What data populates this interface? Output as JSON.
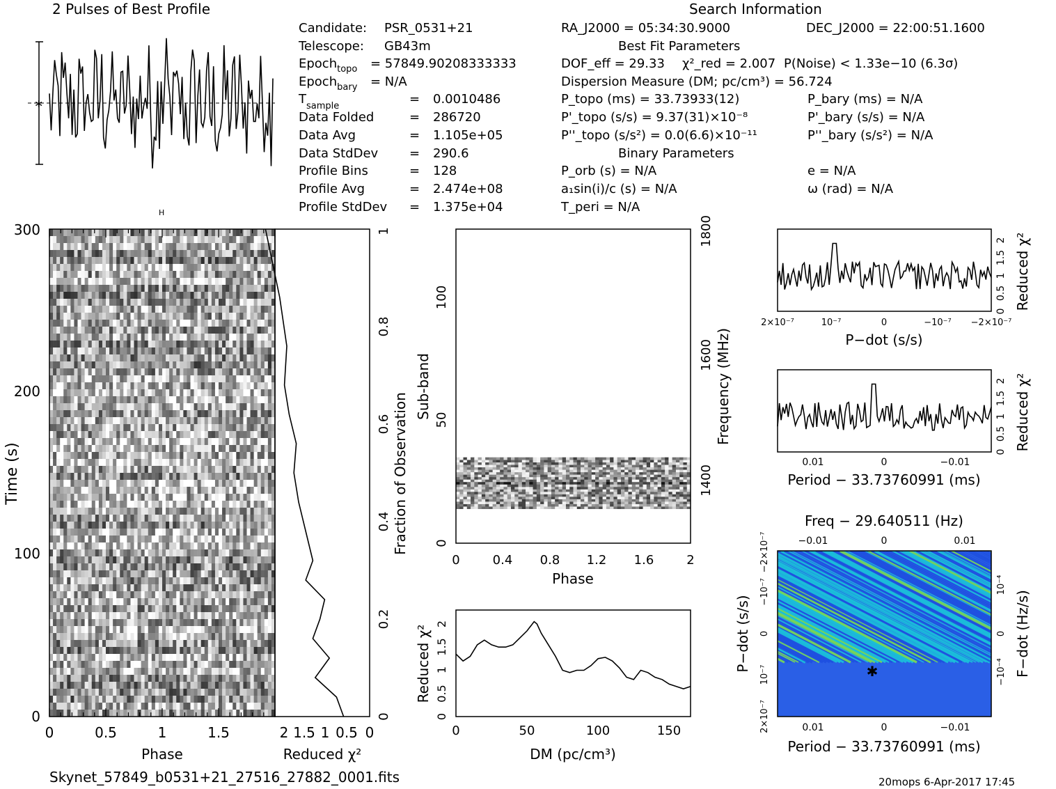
{
  "header": {
    "profile_title": "2 Pulses of Best Profile",
    "search_title": "Search Information",
    "file_name": "Skynet_57849_b0531+21_27516_27882_0001.fits",
    "footer_stamp": "20mops  6-Apr-2017 17:45"
  },
  "info_left": [
    {
      "label": "Candidate:",
      "value": "PSR_0531+21"
    },
    {
      "label": "Telescope:",
      "value": "GB43m"
    },
    {
      "label": "Epoch",
      "sub": "topo",
      "value": "= 57849.90208333333"
    },
    {
      "label": "Epoch",
      "sub": "bary",
      "value": "= N/A"
    },
    {
      "label": "T",
      "sub": "sample",
      "value": "0.0010486"
    },
    {
      "label": "Data Folded",
      "value": "286720"
    },
    {
      "label": "Data Avg",
      "value": "1.105e+05"
    },
    {
      "label": "Data StdDev",
      "value": "290.6"
    },
    {
      "label": "Profile Bins",
      "value": "128"
    },
    {
      "label": "Profile Avg",
      "value": "2.474e+08"
    },
    {
      "label": "Profile StdDev",
      "value": "1.375e+04"
    }
  ],
  "info_right": {
    "ra": "RA_J2000 = 05:34:30.9000",
    "dec": "DEC_J2000 = 22:00:51.1600",
    "best_fit_title": "Best Fit Parameters",
    "dof": "DOF_eff = 29.33",
    "chi2": "χ²_red = 2.007",
    "pnoise": "P(Noise) < 1.33e−10   (6.3σ)",
    "dm": "Dispersion Measure (DM; pc/cm³) = 56.724",
    "ptopo": "P_topo (ms) =  33.73933(12)",
    "pbary": "P_bary (ms) = N/A",
    "pdtopo": "P'_topo (s/s) =  9.37(31)×10⁻⁸",
    "pdbary": "P'_bary (s/s) = N/A",
    "pddtopo": "P''_topo (s/s²) = 0.0(6.6)×10⁻¹¹",
    "pddbary": "P''_bary (s/s²) = N/A",
    "binary_title": "Binary Parameters",
    "porb": "P_orb (s) = N/A",
    "e": "e = N/A",
    "a1": "a₁sin(i)/c (s) = N/A",
    "omega": "ω (rad) = N/A",
    "tperi": "T_peri = N/A"
  },
  "chart_data": [
    {
      "type": "line",
      "title": "2 Pulses of Best Profile",
      "xlabel": "",
      "ylabel": "",
      "x_range": [
        0,
        2
      ],
      "note": "2 pulses of a 128-bin profile; y unitless"
    },
    {
      "type": "heatmap",
      "xlabel": "Phase",
      "ylabel": "Time (s)",
      "xlim": [
        0,
        2
      ],
      "ylim": [
        0,
        300
      ],
      "x_ticks": [
        "0",
        "0.5",
        "1",
        "1.5"
      ],
      "y_ticks": [
        "0",
        "100",
        "200",
        "300"
      ]
    },
    {
      "type": "line",
      "xlabel": "Reduced χ²",
      "ylabel": "Fraction of Observation",
      "xlim": [
        2,
        0
      ],
      "ylim": [
        0,
        1
      ],
      "x_ticks": [
        "2",
        "1.5",
        "1",
        "0.5",
        "0"
      ],
      "y_ticks": [
        "0",
        "0.2",
        "0.4",
        "0.6",
        "0.8",
        "1"
      ],
      "x": [
        0.55,
        0.7,
        1.15,
        0.85,
        1.2,
        1.05,
        0.95,
        1.35,
        1.2,
        1.35,
        1.5,
        1.6,
        1.55,
        1.7,
        1.8,
        1.75,
        1.9,
        2.2
      ],
      "y": [
        0.0,
        0.04,
        0.08,
        0.12,
        0.16,
        0.2,
        0.24,
        0.28,
        0.32,
        0.38,
        0.44,
        0.5,
        0.56,
        0.62,
        0.68,
        0.76,
        0.86,
        1.0
      ]
    },
    {
      "type": "heatmap",
      "xlabel": "Phase",
      "ylabel": "Sub-band",
      "y2label": "Frequency (MHz)",
      "xlim": [
        0,
        2
      ],
      "ylim": [
        0,
        128
      ],
      "x_ticks": [
        "0",
        "0.4",
        "0.8",
        "1.2",
        "1.6",
        "2"
      ],
      "y_ticks": [
        "0",
        "50",
        "100"
      ],
      "y2_ticks": [
        "1400",
        "1600",
        "1800"
      ],
      "filled_subbands": [
        14,
        35
      ]
    },
    {
      "type": "line",
      "xlabel": "DM (pc/cm³)",
      "ylabel": "Reduced χ²",
      "xlim": [
        0,
        165
      ],
      "ylim": [
        0,
        2.3
      ],
      "x_ticks": [
        "0",
        "50",
        "100",
        "150"
      ],
      "y_ticks": [
        "0",
        "0.5",
        "1",
        "1.5",
        "2"
      ],
      "x": [
        0,
        5,
        10,
        15,
        20,
        25,
        30,
        35,
        40,
        45,
        50,
        55,
        57,
        60,
        65,
        70,
        75,
        80,
        85,
        90,
        95,
        100,
        105,
        110,
        115,
        120,
        125,
        130,
        135,
        140,
        145,
        150,
        155,
        160,
        165
      ],
      "y": [
        1.35,
        1.2,
        1.3,
        1.55,
        1.65,
        1.55,
        1.5,
        1.5,
        1.55,
        1.7,
        1.85,
        2.05,
        2.0,
        1.8,
        1.55,
        1.3,
        1.0,
        0.95,
        1.0,
        1.0,
        1.1,
        1.25,
        1.28,
        1.2,
        1.05,
        0.85,
        0.8,
        1.0,
        0.95,
        0.85,
        0.8,
        0.7,
        0.65,
        0.6,
        0.65
      ]
    },
    {
      "type": "line",
      "xlabel": "P−dot (s/s)",
      "ylabel": "Reduced χ²",
      "ylim": [
        0,
        2.3
      ],
      "x_ticks": [
        "2×10⁻⁷",
        "10⁻⁷",
        "0",
        "−10⁻⁷",
        "−2×10⁻⁷"
      ],
      "y_ticks": [
        "0",
        "0.5",
        "1",
        "1.5",
        "2"
      ]
    },
    {
      "type": "line",
      "xlabel": "Period − 33.73760991 (ms)",
      "ylabel": "Reduced χ²",
      "ylim": [
        0,
        2.3
      ],
      "x_ticks": [
        "0.01",
        "0",
        "−0.01"
      ],
      "y_ticks": [
        "0",
        "0.5",
        "1",
        "1.5",
        "2"
      ]
    },
    {
      "type": "heatmap",
      "title": "Freq − 29.640511 (Hz)",
      "xlabel": "Period − 33.73760991 (ms)",
      "ylabel": "P−dot (s/s)",
      "y2label": "F−dot (Hz/s)",
      "x_ticks": [
        "0.01",
        "0",
        "−0.01"
      ],
      "x2_ticks": [
        "−0.01",
        "0",
        "0.01"
      ],
      "y_ticks": [
        "2×10⁻⁷",
        "10⁻⁷",
        "0",
        "−10⁻⁷",
        "−2×10⁻⁷"
      ],
      "y2_ticks": [
        "−10⁻⁴",
        "0",
        "10⁻⁴"
      ],
      "colors": {
        "low": "#1e4fe0",
        "mid": "#19c9d8",
        "high": "#7ee34a"
      }
    }
  ]
}
